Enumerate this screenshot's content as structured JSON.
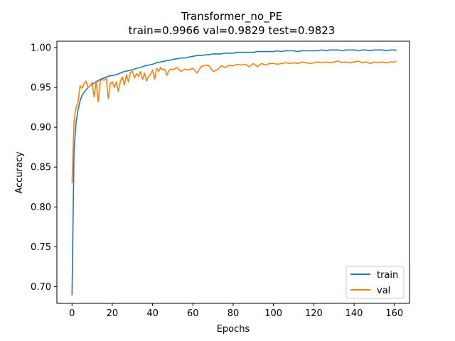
{
  "chart_data": {
    "type": "line",
    "title": "Transformer_no_PE",
    "subtitle": "train=0.9966 val=0.9829 test=0.9823",
    "xlabel": "Epochs",
    "ylabel": "Accuracy",
    "xlim": [
      -7.5,
      167.5
    ],
    "ylim": [
      0.679,
      1.008
    ],
    "xticks": [
      0,
      20,
      40,
      60,
      80,
      100,
      120,
      140,
      160
    ],
    "yticks": [
      0.7,
      0.75,
      0.8,
      0.85,
      0.9,
      0.95,
      1.0
    ],
    "xtick_labels": [
      "0",
      "20",
      "40",
      "60",
      "80",
      "100",
      "120",
      "140",
      "160"
    ],
    "ytick_labels": [
      "0.70",
      "0.75",
      "0.80",
      "0.85",
      "0.90",
      "0.95",
      "1.00"
    ],
    "grid": false,
    "legend_position": "lower-right",
    "colors": {
      "train": "#1f77b4",
      "val": "#ff7f0e"
    },
    "series": [
      {
        "name": "train",
        "points": [
          [
            0,
            0.689
          ],
          [
            1,
            0.87
          ],
          [
            2,
            0.905
          ],
          [
            3,
            0.922
          ],
          [
            4,
            0.933
          ],
          [
            5,
            0.94
          ],
          [
            6,
            0.944
          ],
          [
            7,
            0.947
          ],
          [
            8,
            0.95
          ],
          [
            9,
            0.952
          ],
          [
            10,
            0.954
          ],
          [
            12,
            0.957
          ],
          [
            14,
            0.96
          ],
          [
            16,
            0.962
          ],
          [
            18,
            0.964
          ],
          [
            20,
            0.965
          ],
          [
            22,
            0.966
          ],
          [
            24,
            0.968
          ],
          [
            26,
            0.97
          ],
          [
            28,
            0.971
          ],
          [
            30,
            0.972
          ],
          [
            32,
            0.974
          ],
          [
            34,
            0.975
          ],
          [
            36,
            0.977
          ],
          [
            38,
            0.978
          ],
          [
            40,
            0.979
          ],
          [
            42,
            0.981
          ],
          [
            44,
            0.982
          ],
          [
            46,
            0.983
          ],
          [
            48,
            0.984
          ],
          [
            50,
            0.985
          ],
          [
            52,
            0.986
          ],
          [
            54,
            0.987
          ],
          [
            56,
            0.987
          ],
          [
            58,
            0.988
          ],
          [
            60,
            0.989
          ],
          [
            62,
            0.99
          ],
          [
            64,
            0.99
          ],
          [
            66,
            0.991
          ],
          [
            68,
            0.991
          ],
          [
            70,
            0.992
          ],
          [
            72,
            0.992
          ],
          [
            74,
            0.992
          ],
          [
            76,
            0.993
          ],
          [
            78,
            0.993
          ],
          [
            80,
            0.993
          ],
          [
            82,
            0.994
          ],
          [
            84,
            0.994
          ],
          [
            86,
            0.994
          ],
          [
            88,
            0.994
          ],
          [
            90,
            0.994
          ],
          [
            92,
            0.995
          ],
          [
            94,
            0.995
          ],
          [
            96,
            0.995
          ],
          [
            98,
            0.995
          ],
          [
            100,
            0.995
          ],
          [
            102,
            0.996
          ],
          [
            104,
            0.995
          ],
          [
            106,
            0.996
          ],
          [
            108,
            0.996
          ],
          [
            110,
            0.996
          ],
          [
            112,
            0.995
          ],
          [
            114,
            0.996
          ],
          [
            116,
            0.996
          ],
          [
            118,
            0.996
          ],
          [
            120,
            0.996
          ],
          [
            122,
            0.996
          ],
          [
            124,
            0.997
          ],
          [
            126,
            0.996
          ],
          [
            128,
            0.997
          ],
          [
            130,
            0.997
          ],
          [
            132,
            0.997
          ],
          [
            134,
            0.996
          ],
          [
            136,
            0.997
          ],
          [
            138,
            0.997
          ],
          [
            140,
            0.997
          ],
          [
            142,
            0.996
          ],
          [
            144,
            0.997
          ],
          [
            146,
            0.997
          ],
          [
            148,
            0.996
          ],
          [
            150,
            0.997
          ],
          [
            152,
            0.997
          ],
          [
            154,
            0.997
          ],
          [
            156,
            0.996
          ],
          [
            158,
            0.997
          ],
          [
            160,
            0.997
          ],
          [
            161,
            0.9966
          ]
        ]
      },
      {
        "name": "val",
        "points": [
          [
            0,
            0.83
          ],
          [
            1,
            0.908
          ],
          [
            2,
            0.925
          ],
          [
            3,
            0.932
          ],
          [
            4,
            0.952
          ],
          [
            5,
            0.949
          ],
          [
            6,
            0.955
          ],
          [
            7,
            0.958
          ],
          [
            8,
            0.95
          ],
          [
            9,
            0.952
          ],
          [
            10,
            0.956
          ],
          [
            11,
            0.938
          ],
          [
            12,
            0.958
          ],
          [
            13,
            0.932
          ],
          [
            14,
            0.958
          ],
          [
            15,
            0.96
          ],
          [
            16,
            0.959
          ],
          [
            17,
            0.962
          ],
          [
            18,
            0.936
          ],
          [
            19,
            0.955
          ],
          [
            20,
            0.957
          ],
          [
            21,
            0.95
          ],
          [
            22,
            0.957
          ],
          [
            23,
            0.945
          ],
          [
            24,
            0.958
          ],
          [
            25,
            0.963
          ],
          [
            26,
            0.953
          ],
          [
            27,
            0.966
          ],
          [
            28,
            0.957
          ],
          [
            29,
            0.969
          ],
          [
            30,
            0.97
          ],
          [
            31,
            0.962
          ],
          [
            32,
            0.967
          ],
          [
            33,
            0.964
          ],
          [
            34,
            0.97
          ],
          [
            35,
            0.96
          ],
          [
            36,
            0.968
          ],
          [
            37,
            0.958
          ],
          [
            38,
            0.964
          ],
          [
            39,
            0.966
          ],
          [
            40,
            0.972
          ],
          [
            41,
            0.96
          ],
          [
            42,
            0.974
          ],
          [
            43,
            0.97
          ],
          [
            44,
            0.975
          ],
          [
            45,
            0.972
          ],
          [
            46,
            0.973
          ],
          [
            47,
            0.965
          ],
          [
            48,
            0.971
          ],
          [
            49,
            0.973
          ],
          [
            50,
            0.972
          ],
          [
            52,
            0.975
          ],
          [
            54,
            0.97
          ],
          [
            56,
            0.973
          ],
          [
            58,
            0.972
          ],
          [
            60,
            0.974
          ],
          [
            62,
            0.968
          ],
          [
            64,
            0.976
          ],
          [
            66,
            0.978
          ],
          [
            68,
            0.977
          ],
          [
            70,
            0.97
          ],
          [
            72,
            0.972
          ],
          [
            74,
            0.977
          ],
          [
            76,
            0.975
          ],
          [
            78,
            0.978
          ],
          [
            80,
            0.977
          ],
          [
            82,
            0.979
          ],
          [
            84,
            0.978
          ],
          [
            86,
            0.979
          ],
          [
            88,
            0.976
          ],
          [
            90,
            0.98
          ],
          [
            92,
            0.976
          ],
          [
            94,
            0.98
          ],
          [
            96,
            0.978
          ],
          [
            98,
            0.98
          ],
          [
            100,
            0.98
          ],
          [
            102,
            0.979
          ],
          [
            104,
            0.98
          ],
          [
            106,
            0.981
          ],
          [
            108,
            0.98
          ],
          [
            110,
            0.981
          ],
          [
            112,
            0.98
          ],
          [
            114,
            0.982
          ],
          [
            116,
            0.981
          ],
          [
            118,
            0.98
          ],
          [
            120,
            0.981
          ],
          [
            122,
            0.982
          ],
          [
            124,
            0.981
          ],
          [
            126,
            0.982
          ],
          [
            128,
            0.981
          ],
          [
            130,
            0.982
          ],
          [
            132,
            0.983
          ],
          [
            134,
            0.981
          ],
          [
            136,
            0.982
          ],
          [
            138,
            0.981
          ],
          [
            140,
            0.982
          ],
          [
            142,
            0.983
          ],
          [
            144,
            0.981
          ],
          [
            146,
            0.982
          ],
          [
            148,
            0.98
          ],
          [
            150,
            0.982
          ],
          [
            152,
            0.981
          ],
          [
            154,
            0.982
          ],
          [
            156,
            0.981
          ],
          [
            158,
            0.982
          ],
          [
            160,
            0.982
          ],
          [
            161,
            0.9829
          ]
        ]
      }
    ]
  }
}
